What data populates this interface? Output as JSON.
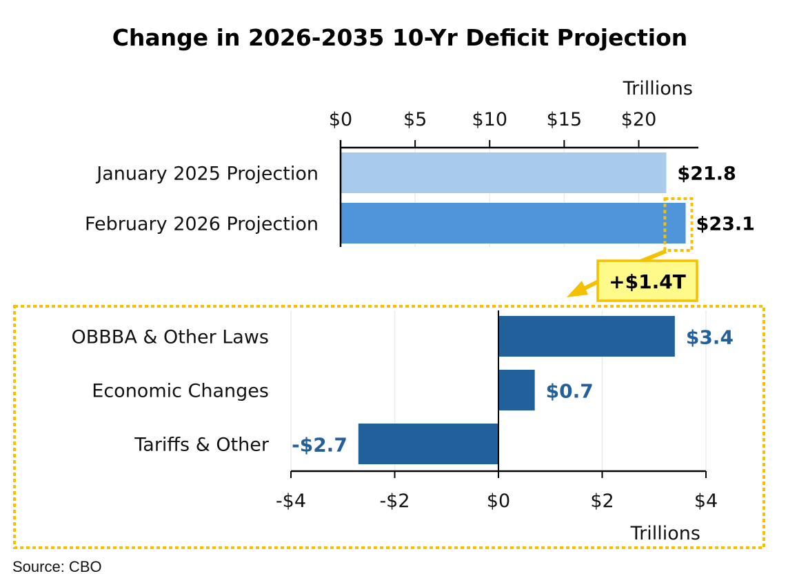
{
  "chart_data": [
    {
      "type": "bar",
      "orientation": "horizontal",
      "title": "Change in 2026-2035 10-Yr Deficit Projection",
      "xlabel": "Trillions",
      "xlim": [
        0,
        24
      ],
      "xticks": [
        0,
        5,
        10,
        15,
        20
      ],
      "xtick_labels": [
        "$0",
        "$5",
        "$10",
        "$15",
        "$20"
      ],
      "axis_position": "top",
      "grid": true,
      "categories": [
        "January 2025 Projection",
        "February 2026 Projection"
      ],
      "values": [
        21.8,
        23.1
      ],
      "value_labels": [
        "$21.8",
        "$23.1"
      ],
      "colors": [
        "#a8cbec",
        "#4f95d9"
      ],
      "annotation": {
        "text": "+$1.4T",
        "refers_to": "February 2026 Projection",
        "highlight_range": [
          21.8,
          23.1
        ]
      }
    },
    {
      "type": "bar",
      "orientation": "horizontal",
      "xlabel": "Trillions",
      "xlim": [
        -4,
        4
      ],
      "xticks": [
        -4,
        -2,
        0,
        2,
        4
      ],
      "xtick_labels": [
        "-$4",
        "-$2",
        "$0",
        "$2",
        "$4"
      ],
      "axis_position": "bottom",
      "grid": true,
      "categories": [
        "OBBBA & Other Laws",
        "Economic Changes",
        "Tariffs & Other"
      ],
      "values": [
        3.4,
        0.7,
        -2.7
      ],
      "value_labels": [
        "$3.4",
        "$0.7",
        "-$2.7"
      ],
      "colors": [
        "#22609b",
        "#22609b",
        "#22609b"
      ]
    }
  ],
  "colors": {
    "highlight": "#f5c000",
    "callout_fill": "#fffa8a",
    "label_blue": "#22609b"
  },
  "source": "Source: CBO"
}
